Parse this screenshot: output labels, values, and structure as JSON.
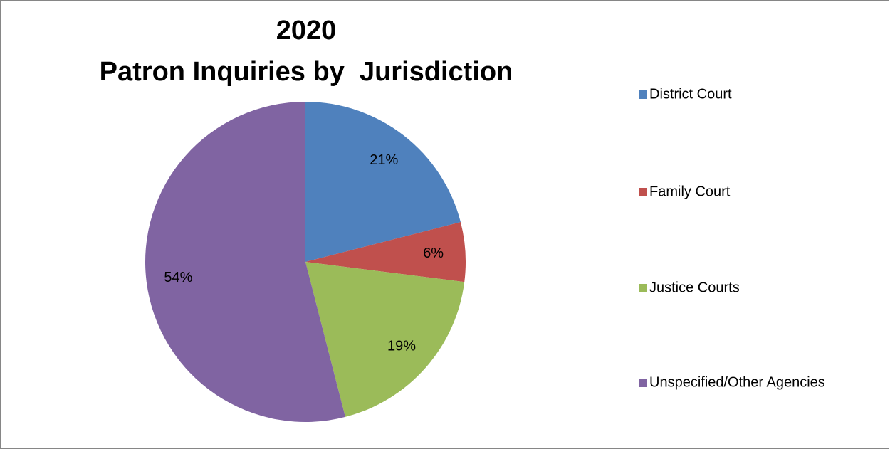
{
  "chart_data": {
    "type": "pie",
    "title": [
      "2020",
      "Patron Inquiries by  Jurisdiction"
    ],
    "categories": [
      "District Court",
      "Family Court",
      "Justice Courts",
      "Unspecified/Other Agencies"
    ],
    "values": [
      21,
      6,
      19,
      54
    ],
    "value_labels": [
      "21%",
      "6%",
      "19%",
      "54%"
    ],
    "colors": [
      "#4f81bd",
      "#c0504d",
      "#9bbb59",
      "#8064a2"
    ],
    "legend": "right"
  }
}
